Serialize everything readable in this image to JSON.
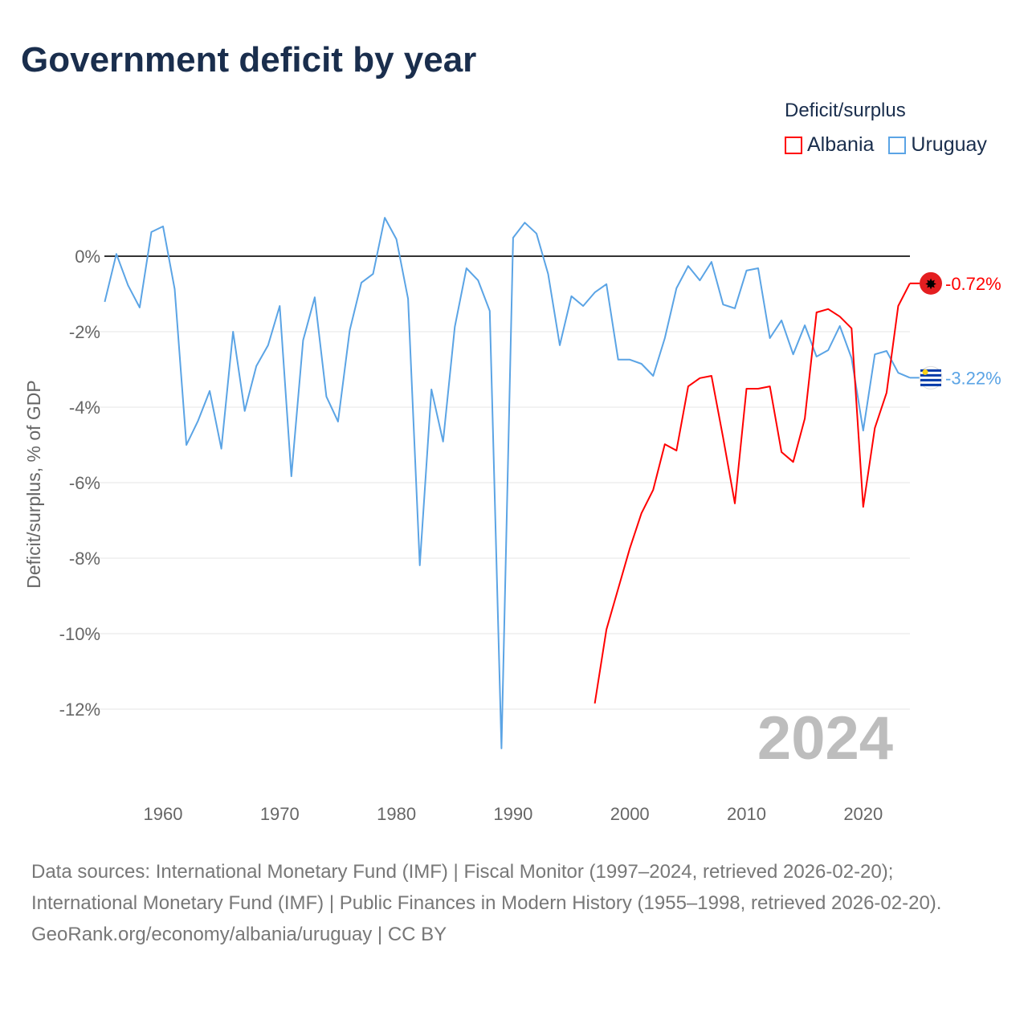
{
  "title": "Government deficit by year",
  "legend": {
    "title": "Deficit/surplus",
    "items": [
      {
        "name": "Albania",
        "color": "#ff0000"
      },
      {
        "name": "Uruguay",
        "color": "#5ba4e5"
      }
    ]
  },
  "chart_data": {
    "type": "line",
    "title": "Government deficit by year",
    "xlabel": "",
    "ylabel": "Deficit/surplus, % of GDP",
    "xlim": [
      1955,
      2024
    ],
    "ylim": [
      -13.5,
      1.2
    ],
    "x_ticks": [
      1960,
      1970,
      1980,
      1990,
      2000,
      2010,
      2020
    ],
    "y_ticks": [
      {
        "v": 0,
        "label": "0%"
      },
      {
        "v": -2,
        "label": "-2%"
      },
      {
        "v": -4,
        "label": "-4%"
      },
      {
        "v": -6,
        "label": "-6%"
      },
      {
        "v": -8,
        "label": "-8%"
      },
      {
        "v": -10,
        "label": "-10%"
      },
      {
        "v": -12,
        "label": "-12%"
      }
    ],
    "year_watermark": "2024",
    "series": [
      {
        "name": "Uruguay",
        "color": "#5ba4e5",
        "end_label": "-3.22%",
        "start": 1955,
        "values": [
          -1.21,
          0.06,
          -0.77,
          -1.36,
          0.64,
          0.79,
          -0.87,
          -5.0,
          -4.36,
          -3.57,
          -5.1,
          -2.0,
          -4.1,
          -2.91,
          -2.36,
          -1.32,
          -5.83,
          -2.23,
          -1.09,
          -3.72,
          -4.38,
          -1.96,
          -0.7,
          -0.47,
          1.02,
          0.45,
          -1.13,
          -8.19,
          -3.53,
          -4.91,
          -1.87,
          -0.32,
          -0.64,
          -1.45,
          -13.04,
          0.49,
          0.89,
          0.6,
          -0.47,
          -2.36,
          -1.06,
          -1.32,
          -0.96,
          -0.74,
          -2.74,
          -2.74,
          -2.85,
          -3.17,
          -2.17,
          -0.85,
          -0.26,
          -0.64,
          -0.15,
          -1.28,
          -1.38,
          -0.38,
          -0.32,
          -2.17,
          -1.7,
          -2.6,
          -1.83,
          -2.66,
          -2.49,
          -1.85,
          -2.7,
          -4.62,
          -2.6,
          -2.51,
          -3.09,
          -3.22
        ]
      },
      {
        "name": "Albania",
        "color": "#ff0000",
        "end_label": "-0.72%",
        "start": 1997,
        "values": [
          -11.85,
          -9.89,
          -8.81,
          -7.74,
          -6.81,
          -6.19,
          -4.98,
          -5.15,
          -3.45,
          -3.23,
          -3.17,
          -4.81,
          -6.55,
          -3.51,
          -3.51,
          -3.45,
          -5.19,
          -5.45,
          -4.3,
          -1.49,
          -1.4,
          -1.6,
          -1.91,
          -6.64,
          -4.55,
          -3.62,
          -1.32,
          -0.72
        ]
      }
    ]
  },
  "footer": {
    "sources": "Data sources: International Monetary Fund (IMF) | Fiscal Monitor (1997–2024, retrieved 2026-02-20); International Monetary Fund (IMF) | Public Finances in Modern History (1955–1998, retrieved 2026-02-20).",
    "credit": "GeoRank.org/economy/albania/uruguay | CC BY"
  }
}
